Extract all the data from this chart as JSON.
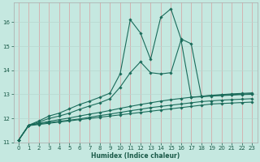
{
  "xlabel": "Humidex (Indice chaleur)",
  "xlim": [
    -0.5,
    23.5
  ],
  "ylim": [
    11,
    16.8
  ],
  "yticks": [
    11,
    12,
    13,
    14,
    15,
    16
  ],
  "xticks": [
    0,
    1,
    2,
    3,
    4,
    5,
    6,
    7,
    8,
    9,
    10,
    11,
    12,
    13,
    14,
    15,
    16,
    17,
    18,
    19,
    20,
    21,
    22,
    23
  ],
  "bg_color": "#c5e8e0",
  "vgrid_color": "#d8a0a0",
  "hgrid_color": "#b8d8d0",
  "line_color": "#1a6b5a",
  "marker": "D",
  "marker_size": 1.8,
  "line_width": 0.8,
  "series": [
    {
      "x": [
        0,
        1,
        2,
        3,
        4,
        5,
        6,
        7,
        8,
        9,
        10,
        11,
        12,
        13,
        14,
        15,
        16,
        17,
        18,
        19,
        20,
        21,
        22,
        23
      ],
      "y": [
        11.1,
        11.7,
        11.75,
        11.8,
        11.85,
        11.9,
        11.95,
        12.0,
        12.05,
        12.1,
        12.15,
        12.2,
        12.25,
        12.3,
        12.35,
        12.4,
        12.45,
        12.5,
        12.55,
        12.6,
        12.62,
        12.64,
        12.66,
        12.68
      ]
    },
    {
      "x": [
        0,
        1,
        2,
        3,
        4,
        5,
        6,
        7,
        8,
        9,
        10,
        11,
        12,
        13,
        14,
        15,
        16,
        17,
        18,
        19,
        20,
        21,
        22,
        23
      ],
      "y": [
        11.1,
        11.72,
        11.78,
        11.83,
        11.88,
        11.93,
        11.98,
        12.05,
        12.12,
        12.18,
        12.25,
        12.32,
        12.38,
        12.45,
        12.5,
        12.55,
        12.6,
        12.65,
        12.7,
        12.73,
        12.76,
        12.78,
        12.8,
        12.82
      ]
    },
    {
      "x": [
        0,
        1,
        2,
        3,
        4,
        5,
        6,
        7,
        8,
        9,
        10,
        11,
        12,
        13,
        14,
        15,
        16,
        17,
        18,
        19,
        20,
        21,
        22,
        23
      ],
      "y": [
        11.1,
        11.72,
        11.8,
        11.88,
        11.95,
        12.02,
        12.1,
        12.18,
        12.25,
        12.33,
        12.42,
        12.5,
        12.58,
        12.65,
        12.72,
        12.78,
        12.83,
        12.88,
        12.92,
        12.96,
        12.99,
        13.02,
        13.04,
        13.06
      ]
    },
    {
      "x": [
        0,
        1,
        2,
        3,
        4,
        5,
        6,
        7,
        8,
        9,
        10,
        11,
        12,
        13,
        14,
        15,
        16,
        17,
        18,
        19,
        20,
        21,
        22,
        23
      ],
      "y": [
        11.1,
        11.72,
        11.85,
        12.0,
        12.1,
        12.22,
        12.38,
        12.52,
        12.65,
        12.82,
        13.3,
        13.9,
        14.35,
        13.9,
        13.85,
        13.9,
        15.25,
        12.88,
        12.9,
        12.93,
        12.95,
        12.97,
        12.99,
        13.0
      ]
    },
    {
      "x": [
        0,
        1,
        2,
        3,
        4,
        5,
        6,
        7,
        8,
        9,
        10,
        11,
        12,
        13,
        14,
        15,
        16,
        17,
        18,
        19,
        20,
        21,
        22,
        23
      ],
      "y": [
        11.1,
        11.72,
        11.9,
        12.1,
        12.22,
        12.4,
        12.58,
        12.72,
        12.88,
        13.05,
        13.85,
        16.1,
        15.55,
        14.45,
        16.2,
        16.55,
        15.3,
        15.1,
        12.92,
        12.95,
        12.97,
        12.99,
        13.01,
        13.03
      ]
    }
  ]
}
